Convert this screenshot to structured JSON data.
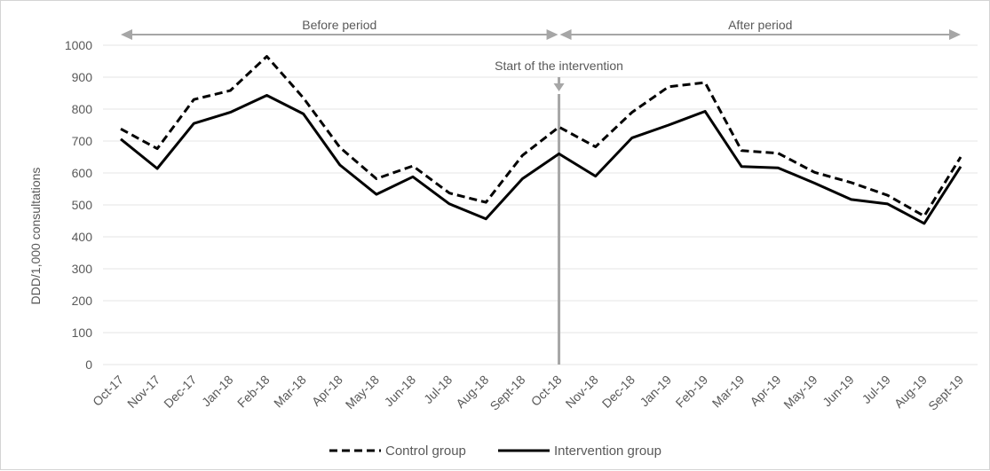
{
  "chart_data": {
    "type": "line",
    "ylabel": "DDD/1,000 consultations",
    "ylim": [
      0,
      1000
    ],
    "yticks": [
      0,
      100,
      200,
      300,
      400,
      500,
      600,
      700,
      800,
      900,
      1000
    ],
    "grid": "horizontal",
    "legend_position": "bottom",
    "categories": [
      "Oct-17",
      "Nov-17",
      "Dec-17",
      "Jan-18",
      "Feb-18",
      "Mar-18",
      "Apr-18",
      "May-18",
      "Jun-18",
      "Jul-18",
      "Aug-18",
      "Sept-18",
      "Oct-18",
      "Nov-18",
      "Dec-18",
      "Jan-19",
      "Feb-19",
      "Mar-19",
      "Apr-19",
      "May-19",
      "Jun-19",
      "Jul-19",
      "Aug-19",
      "Sept-19"
    ],
    "series": [
      {
        "name": "Control group",
        "style": "dashed",
        "color": "#000000",
        "values": [
          738,
          676,
          830,
          858,
          965,
          835,
          680,
          582,
          622,
          537,
          508,
          655,
          744,
          682,
          790,
          870,
          883,
          670,
          662,
          602,
          570,
          530,
          465,
          650
        ]
      },
      {
        "name": "Intervention group",
        "style": "solid",
        "color": "#000000",
        "values": [
          706,
          614,
          755,
          790,
          843,
          785,
          625,
          533,
          588,
          503,
          456,
          582,
          660,
          590,
          710,
          750,
          793,
          620,
          616,
          568,
          517,
          503,
          442,
          620
        ]
      }
    ],
    "annotations": {
      "before_period": {
        "label": "Before period",
        "from": "Oct-17",
        "to": "Oct-18"
      },
      "after_period": {
        "label": "After period",
        "from": "Oct-18",
        "to": "Sept-19"
      },
      "intervention": {
        "label": "Start of the intervention",
        "at": "Oct-18"
      }
    },
    "colors": {
      "grid": "#e6e6e6",
      "axis_text": "#595959",
      "period_arrow": "#a6a6a6",
      "intervention_line": "#a6a6a6",
      "series": "#000000"
    }
  }
}
